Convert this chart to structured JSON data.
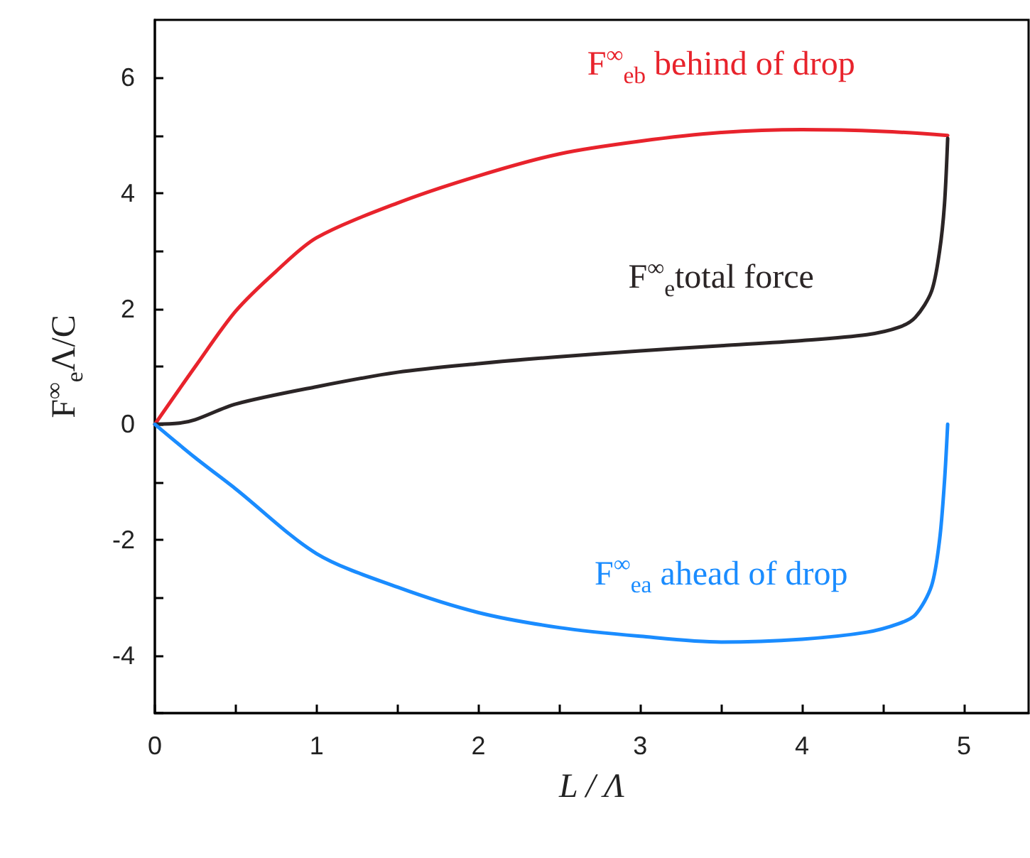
{
  "chart_data": {
    "type": "line",
    "xlabel": "L / Λ",
    "ylabel": "F$^{∞}$$_{e}$Λ/C",
    "xlim": [
      0,
      5.4
    ],
    "ylim": [
      -5,
      7
    ],
    "xticks": [
      0,
      {
        "value": 0.5,
        "label": null
      },
      1,
      {
        "value": 1.5,
        "label": null
      },
      2,
      {
        "value": 2.5,
        "label": null
      },
      3,
      {
        "value": 3.5,
        "label": null
      },
      4,
      {
        "value": 4.5,
        "label": null
      },
      5
    ],
    "yticks": [
      {
        "value": -5,
        "label": null
      },
      -4,
      {
        "value": -3,
        "label": null
      },
      -2,
      {
        "value": -1,
        "label": null
      },
      0,
      {
        "value": 1,
        "label": null
      },
      2,
      {
        "value": 3,
        "label": null
      },
      4,
      {
        "value": 5,
        "label": null
      },
      6
    ],
    "grid": false,
    "legend": false,
    "marker": "none",
    "line_style": "solid",
    "series": [
      {
        "name": "F$^{∞}$$_{eb}$ behind of drop",
        "color": "#e8232c",
        "x": [
          0,
          0.25,
          0.5,
          0.75,
          1,
          1.5,
          2,
          2.5,
          3,
          3.5,
          4,
          4.5,
          4.9
        ],
        "values": [
          0,
          1.0,
          1.96,
          2.65,
          3.23,
          3.83,
          4.3,
          4.68,
          4.9,
          5.05,
          5.1,
          5.07,
          5.0
        ]
      },
      {
        "name": "F$^{∞}$$_{e}$total force",
        "color": "#2b2526",
        "x": [
          0,
          0.15,
          0.25,
          0.5,
          1,
          1.5,
          2,
          2.5,
          3,
          3.5,
          4,
          4.4,
          4.6,
          4.7,
          4.8,
          4.85,
          4.88,
          4.9
        ],
        "values": [
          0,
          0.02,
          0.08,
          0.35,
          0.65,
          0.9,
          1.05,
          1.17,
          1.27,
          1.36,
          1.45,
          1.55,
          1.68,
          1.85,
          2.3,
          3.0,
          3.8,
          4.95
        ]
      },
      {
        "name": "F$^{∞}$$_{ea}$ ahead of drop",
        "color": "#1a8cff",
        "x": [
          0,
          0.25,
          0.5,
          1,
          1.5,
          2,
          2.5,
          3,
          3.5,
          4,
          4.4,
          4.6,
          4.7,
          4.8,
          4.85,
          4.88,
          4.9
        ],
        "values": [
          0,
          -0.58,
          -1.12,
          -2.24,
          -2.82,
          -3.26,
          -3.52,
          -3.67,
          -3.77,
          -3.72,
          -3.6,
          -3.45,
          -3.3,
          -2.8,
          -2.0,
          -1.0,
          0
        ]
      }
    ]
  }
}
